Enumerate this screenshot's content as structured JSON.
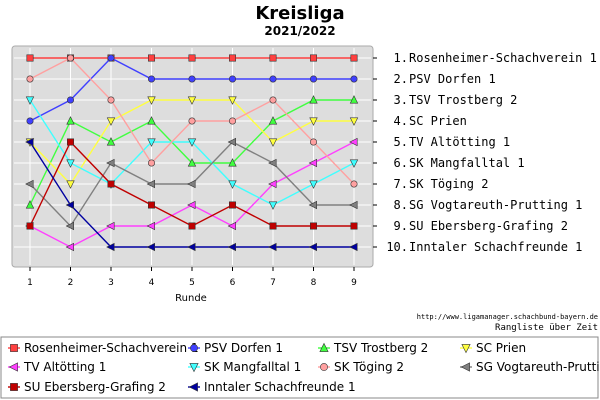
{
  "chart_data": {
    "type": "line",
    "title": "Kreisliga",
    "subtitle": "2021/2022",
    "xlabel": "Runde",
    "ylabel": "",
    "x": [
      1,
      2,
      3,
      4,
      5,
      6,
      7,
      8,
      9
    ],
    "ylim": [
      0.5,
      10.5
    ],
    "y_inverted": true,
    "grid": true,
    "legend_position": "bottom",
    "rank_labels": [
      "1. Rosenheimer-Schachverein 1",
      "2. PSV Dorfen 1",
      "3. TSV Trostberg 2",
      "4. SC Prien",
      "5. TV Altötting 1",
      "6. SK Mangfalltal 1",
      "7. SK Töging 2",
      "8. SG Vogtareuth-Prutting 1",
      "9. SU Ebersberg-Grafing 2",
      "10. Inntaler Schachfreunde 1"
    ],
    "series": [
      {
        "name": "Rosenheimer-Schachverein 1",
        "color": "#ff4040",
        "marker": "square",
        "values": [
          1,
          1,
          1,
          1,
          1,
          1,
          1,
          1,
          1
        ]
      },
      {
        "name": "PSV Dorfen 1",
        "color": "#4040ff",
        "marker": "circle",
        "values": [
          4,
          3,
          1,
          2,
          2,
          2,
          2,
          2,
          2
        ]
      },
      {
        "name": "TSV Trostberg 2",
        "color": "#40ff40",
        "marker": "triangle-up",
        "values": [
          8,
          4,
          5,
          4,
          6,
          6,
          4,
          3,
          3
        ]
      },
      {
        "name": "SC Prien",
        "color": "#ffff40",
        "marker": "triangle-down",
        "values": [
          5,
          7,
          4,
          3,
          3,
          3,
          5,
          4,
          4
        ]
      },
      {
        "name": "TV Altötting 1",
        "color": "#ff40ff",
        "marker": "triangle-left",
        "values": [
          9,
          10,
          9,
          9,
          8,
          9,
          7,
          6,
          5
        ]
      },
      {
        "name": "SK Mangfalltal 1",
        "color": "#40ffff",
        "marker": "triangle-down",
        "values": [
          3,
          6,
          7,
          5,
          5,
          7,
          8,
          7,
          6
        ]
      },
      {
        "name": "SK Töging 2",
        "color": "#ffa0a0",
        "marker": "circle",
        "values": [
          2,
          1,
          3,
          6,
          4,
          4,
          3,
          5,
          7
        ]
      },
      {
        "name": "SG Vogtareuth-Prutting 1",
        "color": "#808080",
        "marker": "triangle-left",
        "values": [
          7,
          9,
          6,
          7,
          7,
          5,
          6,
          8,
          8
        ]
      },
      {
        "name": "SU Ebersberg-Grafing 2",
        "color": "#c00000",
        "marker": "square",
        "values": [
          9,
          5,
          7,
          8,
          9,
          8,
          9,
          9,
          9
        ]
      },
      {
        "name": "Inntaler Schachfreunde 1",
        "color": "#0000a0",
        "marker": "triangle-left",
        "values": [
          5,
          8,
          10,
          10,
          10,
          10,
          10,
          10,
          10
        ]
      }
    ]
  },
  "footer": {
    "url": "http://www.ligamanager.schachbund-bayern.de",
    "note": "Rangliste über Zeit"
  },
  "colors": {
    "plot_background": "#dddddd",
    "grid": "#ffffff"
  }
}
